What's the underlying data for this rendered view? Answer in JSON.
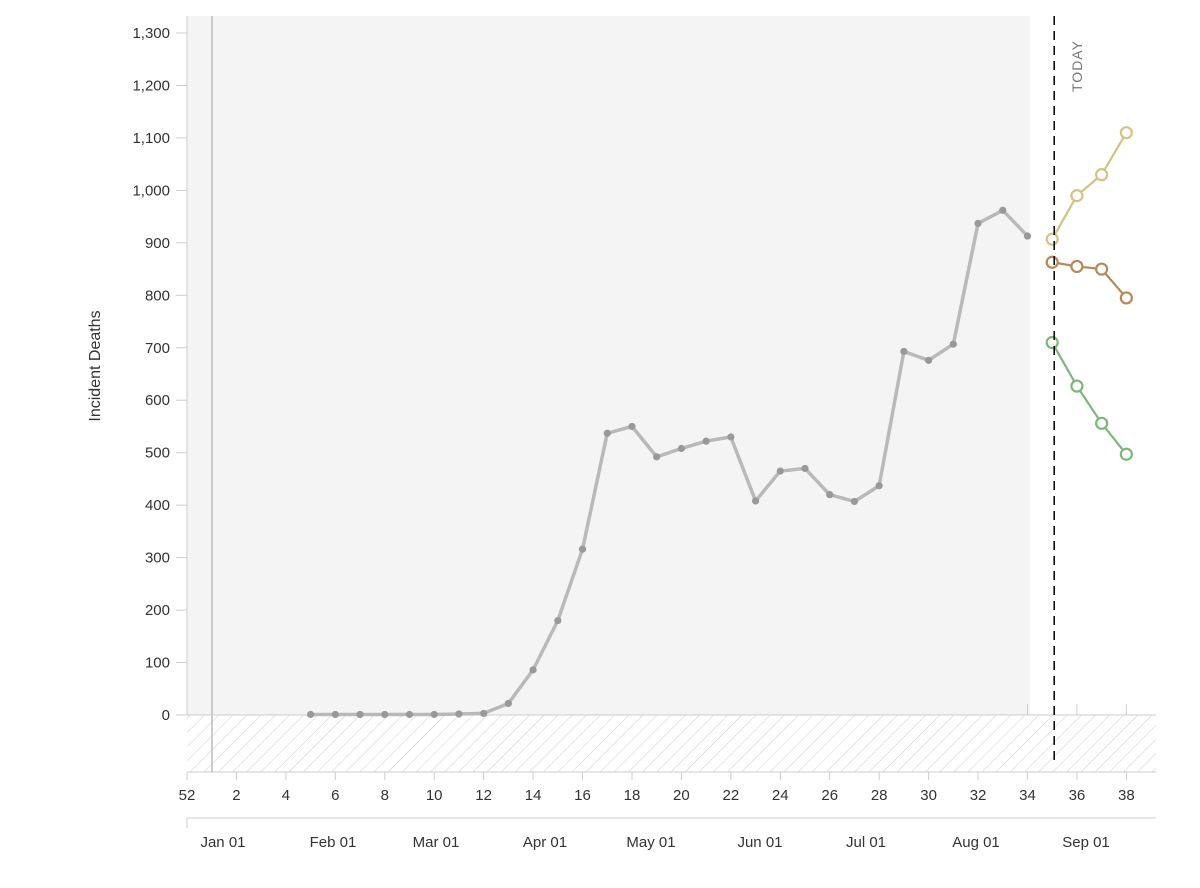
{
  "chart_data": {
    "type": "line",
    "ylabel": "Incident Deaths",
    "ylim": [
      -110,
      1330
    ],
    "yticks": [
      0,
      100,
      200,
      300,
      400,
      500,
      600,
      700,
      800,
      900,
      1000,
      1100,
      1200,
      1300
    ],
    "ytick_labels": [
      "0",
      "100",
      "200",
      "300",
      "400",
      "500",
      "600",
      "700",
      "800",
      "900",
      "1,000",
      "1,100",
      "1,200",
      "1,300"
    ],
    "xlim_week": [
      52,
      38.9
    ],
    "week_ticks": [
      {
        "week": 52,
        "label": "52"
      },
      {
        "week": 2,
        "label": "2"
      },
      {
        "week": 4,
        "label": "4"
      },
      {
        "week": 6,
        "label": "6"
      },
      {
        "week": 8,
        "label": "8"
      },
      {
        "week": 10,
        "label": "10"
      },
      {
        "week": 12,
        "label": "12"
      },
      {
        "week": 14,
        "label": "14"
      },
      {
        "week": 16,
        "label": "16"
      },
      {
        "week": 18,
        "label": "18"
      },
      {
        "week": 20,
        "label": "20"
      },
      {
        "week": 22,
        "label": "22"
      },
      {
        "week": 24,
        "label": "24"
      },
      {
        "week": 26,
        "label": "26"
      },
      {
        "week": 28,
        "label": "28"
      },
      {
        "week": 30,
        "label": "30"
      },
      {
        "week": 32,
        "label": "32"
      },
      {
        "week": 34,
        "label": "34"
      },
      {
        "week": 36,
        "label": "36"
      },
      {
        "week": 38,
        "label": "38"
      }
    ],
    "month_ticks": [
      "Jan 01",
      "Feb 01",
      "Mar 01",
      "Apr 01",
      "May 01",
      "Jun 01",
      "Jul 01",
      "Aug 01",
      "Sep 01"
    ],
    "today_label": "TODAY",
    "today_week": 35,
    "observed_end_week": 34,
    "observed": {
      "color": "#b9b9b9",
      "weeks": [
        5,
        6,
        7,
        8,
        9,
        10,
        11,
        12,
        13,
        14,
        15,
        16,
        17,
        18,
        19,
        20,
        21,
        22,
        23,
        24,
        25,
        26,
        27,
        28,
        29,
        30,
        31,
        32,
        33,
        34
      ],
      "values": [
        1,
        1,
        1,
        1,
        1,
        1,
        2,
        3,
        22,
        86,
        180,
        316,
        537,
        550,
        492,
        508,
        522,
        530,
        408,
        465,
        470,
        420,
        407,
        437,
        693,
        676,
        707,
        937,
        962,
        913
      ]
    },
    "series": [
      {
        "color": "#d3c385",
        "weeks": [
          35,
          36,
          37,
          38
        ],
        "values": [
          907,
          990,
          1030,
          1110
        ]
      },
      {
        "color": "#b5895a",
        "weeks": [
          35,
          36,
          37,
          38
        ],
        "values": [
          863,
          855,
          850,
          795
        ]
      },
      {
        "color": "#7db87a",
        "weeks": [
          35,
          36,
          37,
          38
        ],
        "values": [
          710,
          627,
          556,
          497
        ]
      }
    ]
  }
}
